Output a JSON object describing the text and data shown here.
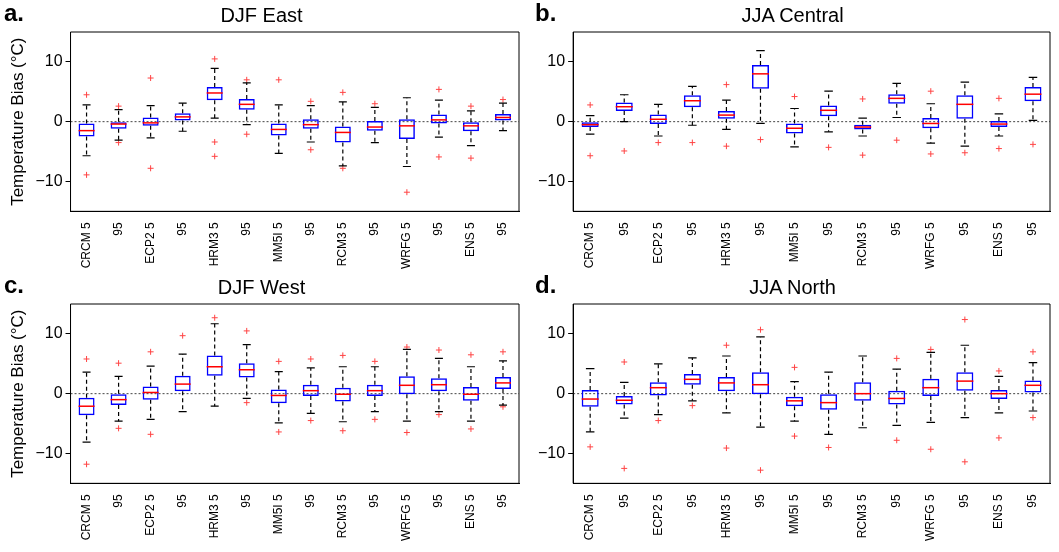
{
  "chart_data": [
    {
      "type": "box",
      "title": "DJF East",
      "annotations": [
        "a."
      ],
      "ylabel": "Temperature Bias (°C)",
      "color": "#0000ff",
      "ylim": [
        -15,
        15
      ],
      "yticks": [
        -10,
        0,
        10
      ],
      "ref_lines": [
        {
          "axis": "y",
          "value": 0,
          "line_style": "dotted"
        }
      ],
      "categories": [
        "CRCM 5",
        "95",
        "ECP2 5",
        "95",
        "HRM3 5",
        "95",
        "MM5I 5",
        "95",
        "RCM3 5",
        "95",
        "WRFG 5",
        "95",
        "ENS 5",
        "95"
      ],
      "boxes": [
        {
          "low": -5.7,
          "q1": -2.5,
          "median": -1.5,
          "q3": -0.3,
          "high": 2.8,
          "outliers": [
            4.5,
            -8.9
          ]
        },
        {
          "low": -3.1,
          "q1": -1.2,
          "median": -0.4,
          "q3": 0,
          "high": 2.0,
          "outliers": [
            2.6,
            -3.5
          ]
        },
        {
          "low": -2.7,
          "q1": -0.7,
          "median": -0.2,
          "q3": 0.7,
          "high": 2.7,
          "outliers": [
            7.3,
            -7.8
          ]
        },
        {
          "low": -1.6,
          "q1": 0.2,
          "median": 0.8,
          "q3": 1.4,
          "high": 3.1
        },
        {
          "low": 0.6,
          "q1": 3.6,
          "median": 4.8,
          "q3": 5.8,
          "high": 8.9,
          "outliers": [
            10.5,
            -3.4,
            -5.8
          ]
        },
        {
          "low": -0.5,
          "q1": 2.0,
          "median": 2.9,
          "q3": 3.8,
          "high": 6.5,
          "outliers": [
            7.0,
            -2.1
          ]
        },
        {
          "low": -5.3,
          "q1": -2.3,
          "median": -1.3,
          "q3": -0.3,
          "high": 2.8,
          "outliers": [
            7.0
          ]
        },
        {
          "low": -3.4,
          "q1": -1.2,
          "median": -0.5,
          "q3": 0.4,
          "high": 2.7,
          "outliers": [
            3.4,
            -4.7
          ]
        },
        {
          "low": -7.4,
          "q1": -3.5,
          "median": -1.8,
          "q3": -0.8,
          "high": 3.3,
          "outliers": [
            4.9,
            -7.8
          ]
        },
        {
          "low": -3.5,
          "q1": -1.5,
          "median": -0.9,
          "q3": 0.1,
          "high": 2.4,
          "outliers": [
            3.0
          ]
        },
        {
          "low": -7.5,
          "q1": -2.9,
          "median": -0.7,
          "q3": 0.4,
          "high": 4.0,
          "outliers": [
            -11.8
          ]
        },
        {
          "low": -2.6,
          "q1": -0.3,
          "median": 0.3,
          "q3": 1.2,
          "high": 3.6,
          "outliers": [
            5.4,
            -5.9
          ]
        },
        {
          "low": -4.0,
          "q1": -1.6,
          "median": -0.7,
          "q3": -0.1,
          "high": 1.8,
          "outliers": [
            2.6,
            -6.1
          ]
        },
        {
          "low": -1.5,
          "q1": 0.2,
          "median": 0.7,
          "q3": 1.3,
          "high": 3.1,
          "outliers": [
            3.7
          ]
        }
      ]
    },
    {
      "type": "box",
      "title": "JJA Central",
      "annotations": [
        "b."
      ],
      "color": "#0000ff",
      "ylim": [
        -15,
        15
      ],
      "yticks": [
        -10,
        0,
        10
      ],
      "ref_lines": [
        {
          "axis": "y",
          "value": 0,
          "line_style": "dotted"
        }
      ],
      "categories": [
        "CRCM 5",
        "95",
        "ECP2 5",
        "95",
        "HRM3 5",
        "95",
        "MM5I 5",
        "95",
        "RCM3 5",
        "95",
        "WRFG 5",
        "95",
        "ENS 5",
        "95"
      ],
      "boxes": [
        {
          "low": -2.1,
          "q1": -0.9,
          "median": -0.5,
          "q3": 0,
          "high": 1.0,
          "outliers": [
            2.8,
            -5.7
          ]
        },
        {
          "low": 0,
          "q1": 1.8,
          "median": 2.5,
          "q3": 3.2,
          "high": 4.5,
          "outliers": [
            -4.9
          ]
        },
        {
          "low": -2.4,
          "q1": -0.4,
          "median": 0.4,
          "q3": 1.2,
          "high": 2.9,
          "outliers": [
            -3.5
          ]
        },
        {
          "low": -0.6,
          "q1": 2.4,
          "median": 3.5,
          "q3": 4.4,
          "high": 5.9,
          "outliers": [
            -3.5
          ]
        },
        {
          "low": -1.3,
          "q1": 0.5,
          "median": 1.1,
          "q3": 1.8,
          "high": 3.6,
          "outliers": [
            6.2,
            -4.1
          ]
        },
        {
          "low": -0.3,
          "q1": 5.5,
          "median": 8.0,
          "q3": 9.5,
          "high": 11.9,
          "outliers": [
            -3.0
          ]
        },
        {
          "low": -4.2,
          "q1": -2.0,
          "median": -1.1,
          "q3": -0.3,
          "high": 2.2,
          "outliers": [
            4.2
          ]
        },
        {
          "low": -1.7,
          "q1": 0.9,
          "median": 1.9,
          "q3": 2.7,
          "high": 5.1,
          "outliers": [
            -4.3
          ]
        },
        {
          "low": -2.4,
          "q1": -1.3,
          "median": -0.9,
          "q3": -0.5,
          "high": 0.6,
          "outliers": [
            3.8,
            -5.6
          ]
        },
        {
          "low": 0.7,
          "q1": 3.0,
          "median": 3.9,
          "q3": 4.6,
          "high": 6.4,
          "outliers": [
            -3.1
          ]
        },
        {
          "low": -3.6,
          "q1": -1.1,
          "median": -0.3,
          "q3": 0.6,
          "high": 3.0,
          "outliers": [
            5.1,
            -5.4
          ]
        },
        {
          "low": -4.1,
          "q1": 0.5,
          "median": 2.9,
          "q3": 4.4,
          "high": 6.6,
          "outliers": [
            -5.2
          ]
        },
        {
          "low": -2.4,
          "q1": -0.9,
          "median": -0.4,
          "q3": 0.1,
          "high": 1.3,
          "outliers": [
            3.9,
            -4.5
          ]
        },
        {
          "low": 0.2,
          "q1": 3.4,
          "median": 4.6,
          "q3": 5.8,
          "high": 7.4,
          "outliers": [
            -3.8
          ]
        }
      ]
    },
    {
      "type": "box",
      "title": "DJF West",
      "annotations": [
        "c."
      ],
      "ylabel": "Temperature Bias (°C)",
      "color": "#0000ff",
      "ylim": [
        -15,
        15
      ],
      "yticks": [
        -10,
        0,
        10
      ],
      "ref_lines": [
        {
          "axis": "y",
          "value": 0,
          "line_style": "dotted"
        }
      ],
      "categories": [
        "CRCM 5",
        "95",
        "ECP2 5",
        "95",
        "HRM3 5",
        "95",
        "MM5I 5",
        "95",
        "RCM3 5",
        "95",
        "WRFG 5",
        "95",
        "ENS 5",
        "95"
      ],
      "boxes": [
        {
          "low": -8.1,
          "q1": -3.6,
          "median": -2.1,
          "q3": -0.7,
          "high": 3.6,
          "outliers": [
            5.8,
            -11.8
          ]
        },
        {
          "low": -4.6,
          "q1": -1.9,
          "median": -1.0,
          "q3": 0,
          "high": 2.9,
          "outliers": [
            5.1,
            -5.8
          ]
        },
        {
          "low": -4.3,
          "q1": -1.0,
          "median": 0.2,
          "q3": 1.2,
          "high": 4.6,
          "outliers": [
            7.0,
            -6.8
          ]
        },
        {
          "low": -3.0,
          "q1": 0.4,
          "median": 1.6,
          "q3": 3.0,
          "high": 6.6,
          "outliers": [
            9.7
          ]
        },
        {
          "low": -2.1,
          "q1": 3.0,
          "median": 4.5,
          "q3": 6.4,
          "high": 11.7,
          "outliers": [
            12.7
          ]
        },
        {
          "low": -0.8,
          "q1": 2.7,
          "median": 4.0,
          "q3": 5.1,
          "high": 8.2,
          "outliers": [
            10.5,
            -1.5
          ]
        },
        {
          "low": -4.9,
          "q1": -1.6,
          "median": -0.3,
          "q3": 0.7,
          "high": 3.7,
          "outliers": [
            5.4,
            -6.4
          ]
        },
        {
          "low": -3.3,
          "q1": -0.4,
          "median": 0.5,
          "q3": 1.5,
          "high": 4.3,
          "outliers": [
            5.8,
            -4.5
          ]
        },
        {
          "low": -4.7,
          "q1": -1.3,
          "median": -0.1,
          "q3": 1.0,
          "high": 4.5,
          "outliers": [
            6.4,
            -6.2
          ]
        },
        {
          "low": -3.0,
          "q1": -0.4,
          "median": 0.5,
          "q3": 1.5,
          "high": 4.5,
          "outliers": [
            5.4,
            -4.3
          ]
        },
        {
          "low": -4.6,
          "q1": -0.1,
          "median": 1.4,
          "q3": 2.9,
          "high": 7.4,
          "outliers": [
            7.8,
            -6.5
          ]
        },
        {
          "low": -3.0,
          "q1": 0.4,
          "median": 1.5,
          "q3": 2.6,
          "high": 5.9,
          "outliers": [
            7.3,
            -3.5
          ]
        },
        {
          "low": -4.6,
          "q1": -1.2,
          "median": -0.1,
          "q3": 1.1,
          "high": 4.5,
          "outliers": [
            6.5,
            -5.9
          ]
        },
        {
          "low": -1.9,
          "q1": 0.8,
          "median": 1.8,
          "q3": 2.8,
          "high": 5.5,
          "outliers": [
            7.0,
            -2.2
          ]
        }
      ]
    },
    {
      "type": "box",
      "title": "JJA North",
      "annotations": [
        "d."
      ],
      "color": "#0000ff",
      "ylim": [
        -15,
        15
      ],
      "yticks": [
        -10,
        0,
        10
      ],
      "ref_lines": [
        {
          "axis": "y",
          "value": 0,
          "line_style": "dotted"
        }
      ],
      "categories": [
        "CRCM 5",
        "95",
        "ECP2 5",
        "95",
        "HRM3 5",
        "95",
        "MM5I 5",
        "95",
        "RCM3 5",
        "95",
        "WRFG 5",
        "95",
        "ENS 5",
        "95"
      ],
      "boxes": [
        {
          "low": -6.4,
          "q1": -2.2,
          "median": -0.9,
          "q3": 0.6,
          "high": 4.2,
          "outliers": [
            -8.9
          ]
        },
        {
          "low": -4.1,
          "q1": -1.8,
          "median": -1.1,
          "q3": -0.4,
          "high": 1.9,
          "outliers": [
            5.3,
            -12.5
          ]
        },
        {
          "low": -3.5,
          "q1": -0.3,
          "median": 1.0,
          "q3": 1.9,
          "high": 5.0,
          "outliers": [
            -4.5
          ]
        },
        {
          "low": -1.2,
          "q1": 1.5,
          "median": 2.4,
          "q3": 3.3,
          "high": 6.0,
          "outliers": [
            -2.0
          ]
        },
        {
          "low": -3.2,
          "q1": 0.4,
          "median": 1.8,
          "q3": 2.8,
          "high": 6.3,
          "outliers": [
            8.1,
            -9.1
          ]
        },
        {
          "low": -5.6,
          "q1": -0.1,
          "median": 1.5,
          "q3": 3.6,
          "high": 9.5,
          "outliers": [
            10.7,
            -12.8
          ]
        },
        {
          "low": -4.6,
          "q1": -2.1,
          "median": -1.2,
          "q3": -0.5,
          "high": 2.0,
          "outliers": [
            4.4,
            -7.1
          ]
        },
        {
          "low": -6.8,
          "q1": -2.7,
          "median": -1.5,
          "q3": 0,
          "high": 3.6,
          "outliers": [
            -9.0
          ]
        },
        {
          "low": -5.7,
          "q1": -1.2,
          "median": 0,
          "q3": 1.9,
          "high": 6.3
        },
        {
          "low": -5.3,
          "q1": -1.8,
          "median": -0.8,
          "q3": 0.5,
          "high": 4.1,
          "outliers": [
            5.9,
            -7.8
          ]
        },
        {
          "low": -4.8,
          "q1": -0.4,
          "median": 1.0,
          "q3": 2.5,
          "high": 6.9,
          "outliers": [
            7.4,
            -9.3
          ]
        },
        {
          "low": -4.0,
          "q1": 0.5,
          "median": 2.1,
          "q3": 3.6,
          "high": 8.1,
          "outliers": [
            12.4,
            -11.4
          ]
        },
        {
          "low": -3.2,
          "q1": -0.9,
          "median": 0,
          "q3": 0.6,
          "high": 2.9,
          "outliers": [
            3.8,
            -7.4
          ]
        },
        {
          "low": -2.9,
          "q1": 0.2,
          "median": 1.4,
          "q3": 2.2,
          "high": 5.2,
          "outliers": [
            7.0,
            -4.0
          ]
        }
      ]
    }
  ]
}
